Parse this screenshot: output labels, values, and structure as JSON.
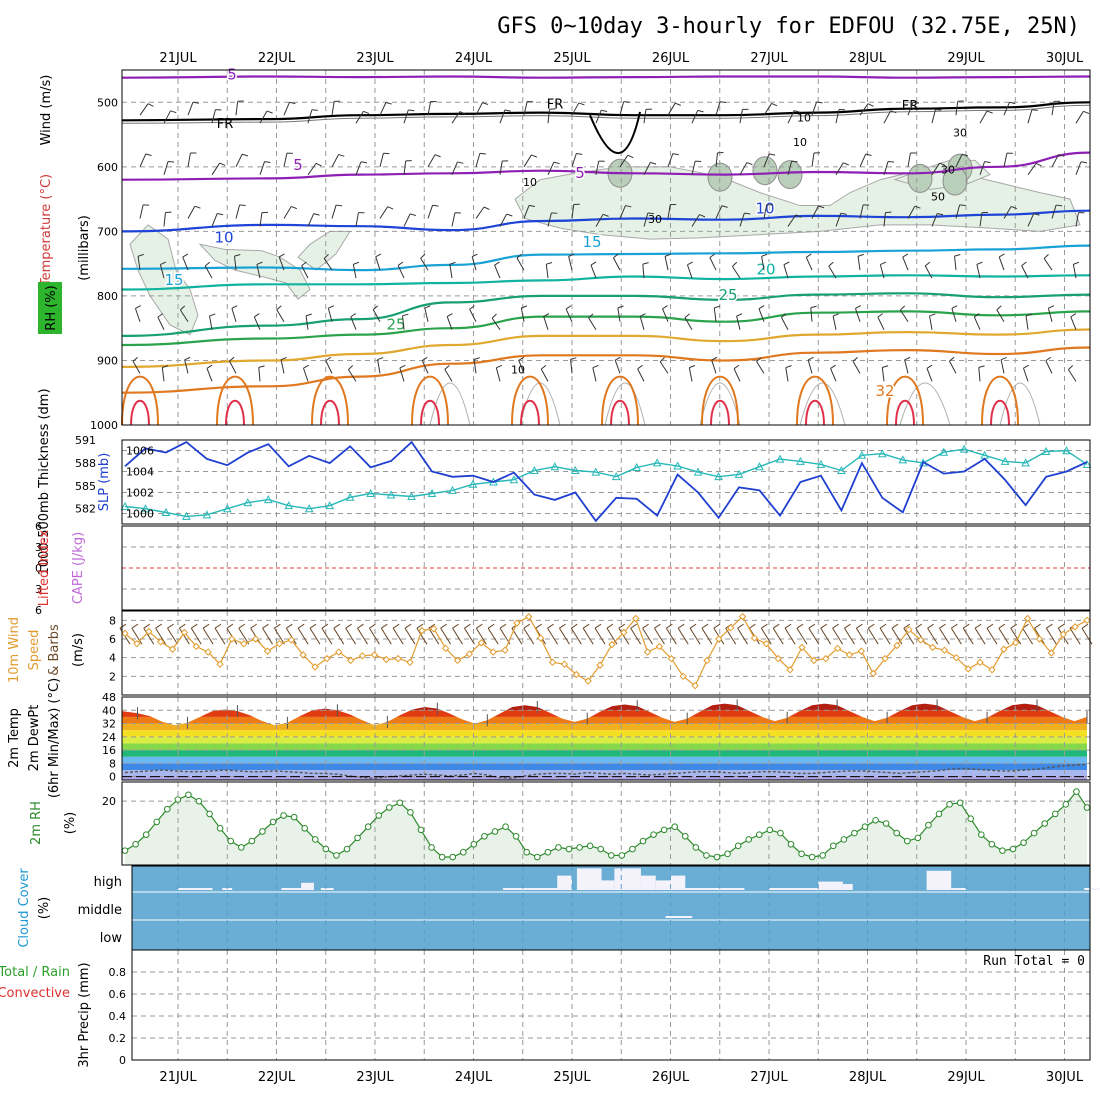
{
  "chart_data": [
    {
      "panel": "upper-air",
      "type": "line",
      "title": "GFS 0~10day 3-hourly for EDFOU (32.75E, 25N)",
      "dates": [
        "21JUL",
        "22JUL",
        "23JUL",
        "24JUL",
        "25JUL",
        "26JUL",
        "27JUL",
        "28JUL",
        "29JUL",
        "30JUL"
      ],
      "ylabel_parts": [
        "Wind (m/s)",
        "Temperature (°C)",
        "RH (%)",
        "(millibars)"
      ],
      "yticks": [
        "500",
        "600",
        "700",
        "800",
        "900",
        "1000"
      ],
      "ylim": [
        450,
        1000
      ],
      "freezing_level_label": "FR",
      "rh_contour_labels": [
        "10",
        "30",
        "50"
      ],
      "rh_legend_label": "RH (%)",
      "isotherms": [
        {
          "label": "5",
          "color": "#8e1fb5",
          "p": [
            620,
            618,
            612,
            610,
            606,
            610,
            612,
            608,
            610,
            600,
            578
          ]
        },
        {
          "label": "5",
          "color": "#8e1fb5",
          "p": [
            462,
            460,
            461,
            460,
            462,
            461,
            460,
            460,
            462,
            461,
            460
          ]
        },
        {
          "label": "10",
          "color": "#1d44d6",
          "p": [
            700,
            690,
            692,
            698,
            684,
            680,
            682,
            676,
            678,
            674,
            668
          ]
        },
        {
          "label": "15",
          "color": "#1aa2d6",
          "p": [
            758,
            756,
            760,
            752,
            736,
            735,
            734,
            732,
            730,
            728,
            722
          ]
        },
        {
          "label": "20",
          "color": "#10b3a0",
          "p": [
            790,
            782,
            782,
            780,
            776,
            770,
            774,
            770,
            768,
            770,
            768
          ]
        },
        {
          "label": "25",
          "color": "#18a070",
          "p": [
            862,
            846,
            836,
            810,
            800,
            800,
            806,
            798,
            796,
            802,
            798
          ]
        },
        {
          "label": "25",
          "color": "#2aa34c",
          "p": [
            876,
            866,
            860,
            850,
            832,
            832,
            840,
            826,
            824,
            830,
            824
          ]
        },
        {
          "label": "30",
          "color": "#e0a82e",
          "p": [
            910,
            900,
            890,
            876,
            862,
            862,
            870,
            860,
            856,
            860,
            852
          ]
        },
        {
          "label": "32",
          "color": "#e07820",
          "p": [
            950,
            940,
            925,
            905,
            892,
            892,
            900,
            888,
            884,
            890,
            880
          ]
        }
      ],
      "freezing_level": [
        528,
        526,
        520,
        518,
        516,
        520,
        520,
        516,
        510,
        508,
        500
      ]
    },
    {
      "panel": "thickness-slp",
      "type": "line",
      "ylabel_left": "1000-500mb Thickness (dm)",
      "ylabel_right": "SLP (mb)",
      "left_ticks": [
        "591",
        "588",
        "585",
        "582"
      ],
      "left_ylim": [
        580,
        591
      ],
      "right_ticks": [
        "1006",
        "1004",
        "1002",
        "1000"
      ],
      "right_ylim": [
        999,
        1007
      ],
      "series": [
        {
          "name": "SLP (mb)",
          "color": "#1f3fd0",
          "values": [
            1004.5,
            1006.2,
            1005.8,
            1006.8,
            1005.2,
            1004.6,
            1005.8,
            1006.6,
            1004.5,
            1005.5,
            1004.8,
            1006.4,
            1004.4,
            1005.0,
            1006.8,
            1004.0,
            1003.5,
            1003.6,
            1003.0,
            1003.9,
            1001.8,
            1001.3,
            1002.0,
            999.3,
            1001.5,
            1001.4,
            999.8,
            1003.7,
            1002.0,
            999.6,
            1002.5,
            1002.2,
            999.8,
            1003.0,
            1003.6,
            1000.3,
            1004.8,
            1001.5,
            1000.1,
            1004.9,
            1003.8,
            1004.0,
            1005.2,
            1003.2,
            1000.8,
            1003.5,
            1004.0,
            1004.9
          ]
        },
        {
          "name": "Thickness (dm)",
          "color": "#27b8b8",
          "values": [
            582.3,
            582.0,
            581.5,
            581.0,
            581.2,
            582.0,
            582.8,
            583.2,
            582.4,
            582.0,
            582.4,
            583.5,
            584.0,
            583.8,
            583.6,
            584.0,
            584.4,
            585.2,
            585.5,
            585.8,
            587.0,
            587.5,
            587.0,
            586.8,
            586.2,
            587.4,
            588.0,
            587.6,
            586.8,
            586.2,
            586.5,
            587.5,
            588.5,
            588.2,
            587.8,
            587.0,
            589.0,
            589.2,
            588.4,
            588.0,
            589.4,
            589.8,
            589.0,
            588.2,
            588.0,
            589.5,
            589.6,
            587.8
          ]
        }
      ]
    },
    {
      "panel": "stability",
      "type": "line",
      "ylabel_left": "Lifted Index",
      "ylabel_right": "CAPE (J/kg)",
      "yticks": [
        "6",
        "3",
        "0",
        "3",
        "6"
      ],
      "ylim": [
        -6,
        6
      ],
      "reference_line": 0
    },
    {
      "panel": "wind-10m",
      "type": "line",
      "ylabel": "10m Wind Speed & Barbs (m/s)",
      "ylabel_parts": [
        "10m Wind",
        "Speed",
        "& Barbs",
        "(m/s)"
      ],
      "yticks": [
        "8",
        "6",
        "4",
        "2"
      ],
      "ylim": [
        0,
        9
      ],
      "series": [
        {
          "name": "10m Wind Speed",
          "color": "#e29b2d",
          "values": [
            6.6,
            5.5,
            6.8,
            5.7,
            4.9,
            6.7,
            5.2,
            4.6,
            3.3,
            6.0,
            5.5,
            6.0,
            4.7,
            5.5,
            5.9,
            4.3,
            3.0,
            3.9,
            4.6,
            3.7,
            4.2,
            4.3,
            3.8,
            3.9,
            3.5,
            6.9,
            7.1,
            5.0,
            3.7,
            4.4,
            5.6,
            4.6,
            4.8,
            7.7,
            8.4,
            6.1,
            3.5,
            3.3,
            2.2,
            1.5,
            3.2,
            5.4,
            6.7,
            8.2,
            4.6,
            5.2,
            3.9,
            2.0,
            1.0,
            3.7,
            6.0,
            7.2,
            8.4,
            6.1,
            5.5,
            3.9,
            2.7,
            5.1,
            3.7,
            3.9,
            5.0,
            4.3,
            4.7,
            2.3,
            3.9,
            5.3,
            7.0,
            5.9,
            5.1,
            4.8,
            4.0,
            2.8,
            3.5,
            2.7,
            4.9,
            5.6,
            8.2,
            6.0,
            4.5,
            6.5,
            7.3,
            8.0
          ]
        }
      ]
    },
    {
      "panel": "temperature",
      "type": "area",
      "ylabel_parts": [
        "2m Temp",
        "2m DewPt",
        "(6hr Min/Max) (°C)"
      ],
      "yticks": [
        "48",
        "40",
        "32",
        "24",
        "16",
        "8",
        "0"
      ],
      "ylim": [
        -2,
        48
      ],
      "series": [
        {
          "name": "2m Temp",
          "values": [
            39.5,
            38.2,
            36.5,
            33.0,
            31.0,
            32.5,
            36.0,
            39.5,
            40.5,
            39.5,
            37.0,
            33.5,
            31.0,
            32.5,
            36.5,
            40.0,
            41.0,
            40.0,
            37.5,
            34.0,
            31.0,
            33.0,
            37.0,
            40.5,
            42.0,
            41.0,
            38.0,
            34.5,
            32.0,
            34.0,
            38.0,
            42.0,
            43.0,
            42.0,
            38.5,
            35.0,
            33.0,
            35.0,
            39.0,
            42.5,
            43.5,
            42.5,
            39.0,
            35.5,
            33.0,
            35.0,
            39.0,
            43.0,
            44.0,
            43.0,
            39.5,
            36.0,
            33.5,
            35.5,
            39.5,
            43.0,
            44.0,
            43.0,
            39.5,
            36.0,
            33.5,
            35.5,
            39.5,
            43.0,
            44.0,
            43.0,
            39.5,
            36.0,
            33.5,
            35.5,
            39.5,
            43.0,
            44.0,
            43.0,
            39.5,
            36.0,
            33.5,
            36.0
          ]
        },
        {
          "name": "2m DewPt",
          "values": [
            2.5,
            3.0,
            3.5,
            4.0,
            3.5,
            3.0,
            3.0,
            3.5,
            4.0,
            3.5,
            3.0,
            3.0,
            3.5,
            3.0,
            2.5,
            2.0,
            2.0,
            1.5,
            0.5,
            -0.5,
            -1.0,
            0.0,
            0.5,
            1.0,
            1.5,
            1.0,
            0.5,
            1.0,
            2.0,
            1.0,
            -0.5,
            -1.0,
            0.5,
            1.5,
            2.0,
            2.0,
            1.5,
            2.5,
            2.0,
            1.5,
            2.0,
            1.5,
            1.0,
            1.5,
            2.0,
            2.5,
            3.0,
            3.0,
            2.5,
            2.0,
            2.5,
            3.0,
            3.0,
            2.5,
            2.0,
            2.0,
            2.5,
            3.0,
            3.5,
            3.5,
            3.0,
            2.5,
            2.0,
            2.5,
            3.0,
            3.5,
            4.5,
            5.0,
            4.5,
            4.0,
            3.5,
            3.5,
            4.0,
            4.5,
            5.5,
            6.5,
            7.0,
            7.5
          ]
        }
      ]
    },
    {
      "panel": "relative-humidity",
      "type": "area",
      "ylabel_parts": [
        "2m RH",
        "(%)"
      ],
      "yticks": [
        "20"
      ],
      "ylim": [
        0,
        26
      ],
      "series": [
        {
          "name": "2m RH",
          "color": "#2e8a2e",
          "values": [
            4.5,
            6.5,
            9.5,
            13.5,
            17.5,
            20.5,
            22.0,
            20.0,
            16.0,
            11.5,
            7.5,
            5.5,
            7.5,
            10.5,
            13.5,
            15.5,
            15.0,
            11.5,
            8.0,
            5.0,
            3.0,
            5.0,
            8.5,
            12.0,
            15.5,
            18.0,
            19.5,
            16.5,
            11.0,
            5.5,
            2.5,
            2.5,
            4.0,
            6.5,
            9.0,
            10.5,
            12.0,
            9.0,
            4.0,
            2.5,
            4.0,
            5.5,
            5.0,
            5.5,
            6.0,
            5.0,
            3.0,
            3.0,
            5.0,
            7.5,
            9.5,
            11.0,
            12.0,
            9.0,
            5.5,
            3.0,
            2.5,
            3.5,
            6.0,
            8.0,
            9.5,
            11.0,
            10.0,
            6.5,
            3.5,
            2.5,
            3.0,
            6.0,
            8.0,
            10.0,
            12.0,
            14.0,
            13.0,
            10.0,
            7.5,
            8.5,
            12.5,
            16.0,
            19.0,
            19.5,
            14.5,
            9.5,
            6.5,
            4.5,
            5.0,
            7.0,
            10.0,
            13.0,
            16.0,
            19.0,
            23.0,
            18.0
          ]
        }
      ]
    },
    {
      "panel": "cloud-cover",
      "type": "bar",
      "ylabel": "Cloud Cover (%)",
      "yticks": [
        "high",
        "middle",
        "low"
      ],
      "high_cloud_percent": [
        0,
        3,
        3,
        3,
        3,
        3,
        3,
        3,
        3,
        3,
        0,
        0,
        3,
        0,
        0,
        0,
        0,
        0,
        0,
        0,
        0,
        0,
        0,
        0,
        0,
        0,
        0,
        0,
        0,
        0,
        0,
        0,
        0,
        0,
        0,
        0,
        0,
        0,
        0,
        0,
        0,
        0,
        0,
        0,
        0,
        0,
        0,
        0,
        0,
        0,
        0,
        0,
        0,
        0,
        0,
        0,
        0,
        3,
        3,
        3,
        3,
        3,
        3,
        0,
        0,
        0,
        0,
        0,
        0,
        0,
        0,
        0,
        0,
        0,
        0,
        0,
        0,
        0,
        0,
        0,
        0,
        0,
        0,
        0,
        0,
        0,
        0,
        0,
        0,
        0,
        0,
        0,
        0,
        0,
        0,
        0,
        0,
        0,
        0,
        0,
        0,
        0,
        0,
        0,
        0,
        3,
        3,
        3,
        8,
        8,
        8,
        8,
        8,
        8,
        8,
        8,
        8,
        8,
        0,
        0,
        0
      ],
      "high_cloud_blocks": [
        {
          "start_day": 0.0,
          "end_day": 0.35,
          "percent": 3
        },
        {
          "start_day": 0.45,
          "end_day": 0.55,
          "percent": 3
        },
        {
          "start_day": 1.05,
          "end_day": 1.25,
          "percent": 3
        },
        {
          "start_day": 1.25,
          "end_day": 1.38,
          "percent": 30
        },
        {
          "start_day": 1.45,
          "end_day": 1.58,
          "percent": 3
        },
        {
          "start_day": 3.3,
          "end_day": 3.55,
          "percent": 3
        },
        {
          "start_day": 3.55,
          "end_day": 3.85,
          "percent": 8
        },
        {
          "start_day": 3.85,
          "end_day": 4.0,
          "percent": 60
        },
        {
          "start_day": 4.05,
          "end_day": 4.3,
          "percent": 90
        },
        {
          "start_day": 4.3,
          "end_day": 4.43,
          "percent": 40
        },
        {
          "start_day": 4.43,
          "end_day": 4.7,
          "percent": 90
        },
        {
          "start_day": 4.7,
          "end_day": 4.85,
          "percent": 60
        },
        {
          "start_day": 4.85,
          "end_day": 5.0,
          "percent": 40
        },
        {
          "start_day": 5.0,
          "end_day": 5.15,
          "percent": 60
        },
        {
          "start_day": 5.15,
          "end_day": 5.75,
          "percent": 3
        },
        {
          "start_day": 6.0,
          "end_day": 6.5,
          "percent": 3
        },
        {
          "start_day": 6.5,
          "end_day": 6.75,
          "percent": 35
        },
        {
          "start_day": 6.75,
          "end_day": 6.85,
          "percent": 25
        },
        {
          "start_day": 7.6,
          "end_day": 7.85,
          "percent": 80
        },
        {
          "start_day": 7.85,
          "end_day": 8.0,
          "percent": 3
        },
        {
          "start_day": 9.2,
          "end_day": 9.45,
          "percent": 3
        }
      ],
      "mid_cloud_blocks": [
        {
          "start_day": 4.95,
          "end_day": 5.22,
          "percent": 3
        }
      ]
    },
    {
      "panel": "precipitation",
      "type": "bar",
      "ylabel": "3hr Precip (mm)",
      "ylabel_legend": [
        "Total / Rain",
        "Convective"
      ],
      "yticks": [
        "0.8",
        "0.6",
        "0.4",
        "0.2",
        "0"
      ],
      "ylim": [
        0,
        1.0
      ],
      "run_total_label": "Run Total = 0",
      "values": []
    }
  ]
}
